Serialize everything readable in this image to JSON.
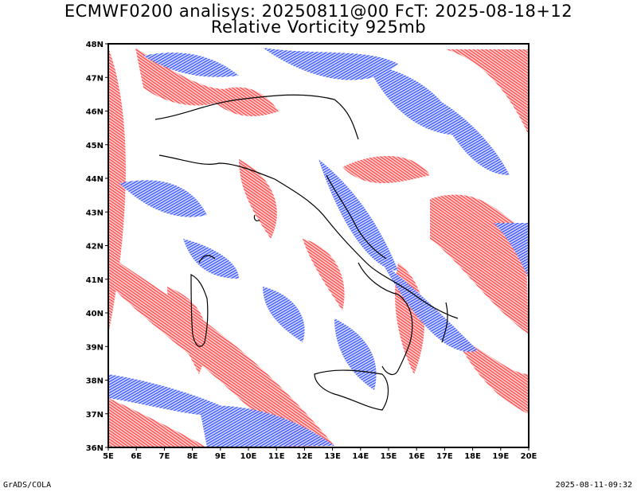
{
  "title": {
    "line1": "ECMWF0200 analisys: 20250811@00 FcT: 2025-08-18+12",
    "line2": "Relative Vorticity 925mb"
  },
  "axes": {
    "x_labels": [
      "5E",
      "6E",
      "7E",
      "8E",
      "9E",
      "10E",
      "11E",
      "12E",
      "13E",
      "14E",
      "15E",
      "16E",
      "17E",
      "18E",
      "19E",
      "20E"
    ],
    "y_labels": [
      "36N",
      "37N",
      "38N",
      "39N",
      "40N",
      "41N",
      "42N",
      "43N",
      "44N",
      "45N",
      "46N",
      "47N",
      "48N"
    ],
    "lon_range": [
      5,
      20
    ],
    "lat_range": [
      36,
      48
    ]
  },
  "colors": {
    "positive": "#ff3030",
    "negative": "#2040ff",
    "coast": "#000000"
  },
  "footer": {
    "left": "GrADS/COLA",
    "right": "2025-08-11-09:32"
  }
}
